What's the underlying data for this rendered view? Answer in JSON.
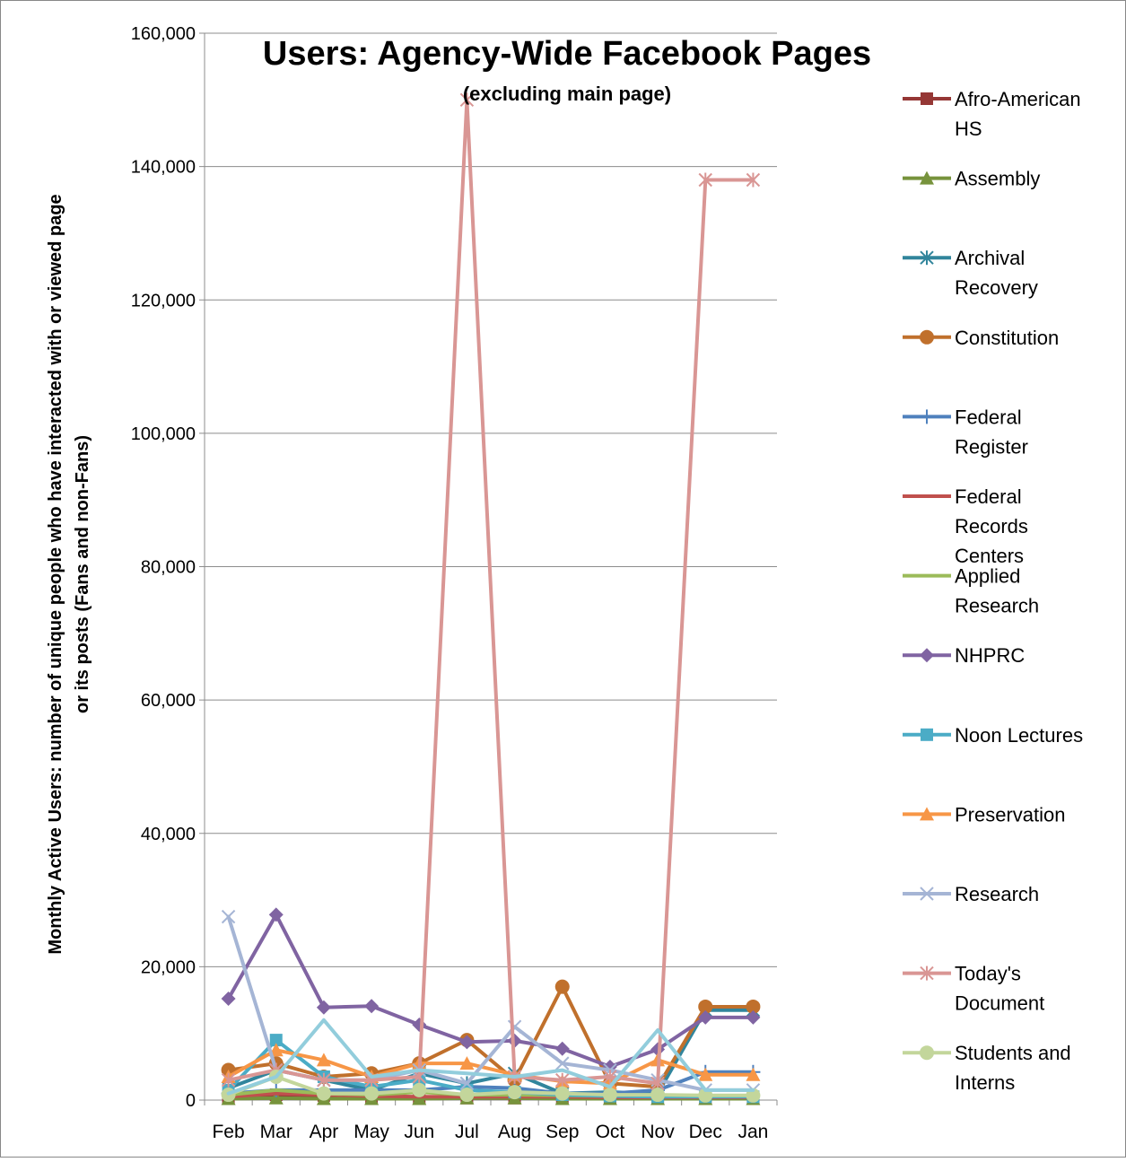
{
  "chart_data": {
    "type": "line",
    "title": "Users: Agency-Wide Facebook Pages",
    "subtitle": "(excluding main page)",
    "ylabel_line1": "Monthly Active Users: number of unique people who have interacted with or viewed page",
    "ylabel_line2": "or its posts (Fans and non-Fans)",
    "xlabel": "",
    "categories": [
      "Feb",
      "Mar",
      "Apr",
      "May",
      "Jun",
      "Jul",
      "Aug",
      "Sep",
      "Oct",
      "Nov",
      "Dec",
      "Jan"
    ],
    "ylim": [
      0,
      160000
    ],
    "yticks": [
      0,
      20000,
      40000,
      60000,
      80000,
      100000,
      120000,
      140000,
      160000
    ],
    "ytick_labels": [
      "0",
      "20,000",
      "40,000",
      "60,000",
      "80,000",
      "100,000",
      "120,000",
      "140,000",
      "160,000"
    ],
    "grid": "horizontal",
    "legend_position": "right",
    "series": [
      {
        "name": "Afro-American HS",
        "legend_lines": [
          "Afro-American",
          "HS"
        ],
        "color": "#953735",
        "marker": "square",
        "values": [
          300,
          800,
          700,
          400,
          300,
          300,
          300,
          300,
          200,
          200,
          200,
          200
        ]
      },
      {
        "name": "Assembly",
        "legend_lines": [
          "Assembly"
        ],
        "color": "#77933c",
        "marker": "triangle",
        "values": [
          200,
          300,
          200,
          200,
          200,
          300,
          300,
          200,
          200,
          200,
          200,
          200
        ]
      },
      {
        "name": "Archival Recovery",
        "legend_lines": [
          "Archival",
          "Recovery"
        ],
        "color": "#31859c",
        "marker": "asterisk",
        "values": [
          1800,
          4500,
          3000,
          1500,
          4000,
          2500,
          4000,
          1000,
          1200,
          1000,
          13500,
          13500
        ]
      },
      {
        "name": "Constitution",
        "legend_lines": [
          "Constitution"
        ],
        "color": "#c0702c",
        "marker": "circle",
        "values": [
          4500,
          5500,
          3500,
          4000,
          5500,
          9000,
          3000,
          17000,
          2500,
          2000,
          14000,
          14000
        ]
      },
      {
        "name": "Federal Register",
        "legend_lines": [
          "Federal",
          "Register"
        ],
        "color": "#4f81bd",
        "marker": "plus",
        "values": [
          1000,
          1500,
          1500,
          1500,
          1500,
          2000,
          1800,
          1000,
          1000,
          1500,
          4200,
          4200
        ]
      },
      {
        "name": "Federal Records Centers",
        "legend_lines": [
          "Federal",
          "Records",
          "Centers"
        ],
        "color": "#c0504d",
        "marker": "none",
        "values": [
          500,
          1000,
          800,
          600,
          500,
          500,
          500,
          500,
          400,
          400,
          400,
          400
        ]
      },
      {
        "name": "Applied Research",
        "legend_lines": [
          "Applied",
          "Research"
        ],
        "color": "#9bbb59",
        "marker": "none",
        "values": [
          800,
          1500,
          1000,
          800,
          1200,
          800,
          800,
          700,
          600,
          600,
          600,
          600
        ]
      },
      {
        "name": "NHPRC",
        "legend_lines": [
          "NHPRC"
        ],
        "color": "#8064a2",
        "marker": "diamond",
        "values": [
          15200,
          27800,
          13900,
          14100,
          11300,
          8700,
          8900,
          7700,
          5000,
          7600,
          12400,
          12400
        ]
      },
      {
        "name": "Noon Lectures",
        "legend_lines": [
          "Noon Lectures"
        ],
        "color": "#4bacc6",
        "marker": "square",
        "values": [
          1500,
          9000,
          3500,
          2000,
          3000,
          1500,
          1200,
          800,
          600,
          500,
          500,
          500
        ]
      },
      {
        "name": "Preservation",
        "legend_lines": [
          "Preservation"
        ],
        "color": "#f79646",
        "marker": "triangle",
        "values": [
          3500,
          7500,
          6000,
          3500,
          5500,
          5500,
          3800,
          2800,
          2500,
          6000,
          3800,
          3800
        ]
      },
      {
        "name": "Research",
        "legend_lines": [
          "Research"
        ],
        "color": "#a5b5d5",
        "marker": "x",
        "values": [
          27500,
          4500,
          3000,
          3000,
          4500,
          2500,
          11000,
          5500,
          4500,
          3000,
          1500,
          1500
        ]
      },
      {
        "name": "Today's Document",
        "legend_lines": [
          "Today's",
          "Document"
        ],
        "color": "#d99694",
        "marker": "asterisk",
        "values": [
          3000,
          4500,
          3000,
          3000,
          3500,
          150000,
          3500,
          3000,
          3500,
          2500,
          138000,
          138000
        ]
      },
      {
        "name": "Students and Interns",
        "legend_lines": [
          "Students and",
          "Interns"
        ],
        "color": "#c3d69b",
        "marker": "circle",
        "values": [
          800,
          3500,
          1000,
          1000,
          1500,
          800,
          1200,
          1000,
          800,
          800,
          700,
          700
        ]
      },
      {
        "name": "_series14",
        "legend_lines": [],
        "color": "#92cddc",
        "marker": "none",
        "values": [
          1000,
          3500,
          12000,
          3500,
          4500,
          4000,
          3500,
          4500,
          2000,
          10500,
          1500,
          1500
        ]
      }
    ]
  }
}
